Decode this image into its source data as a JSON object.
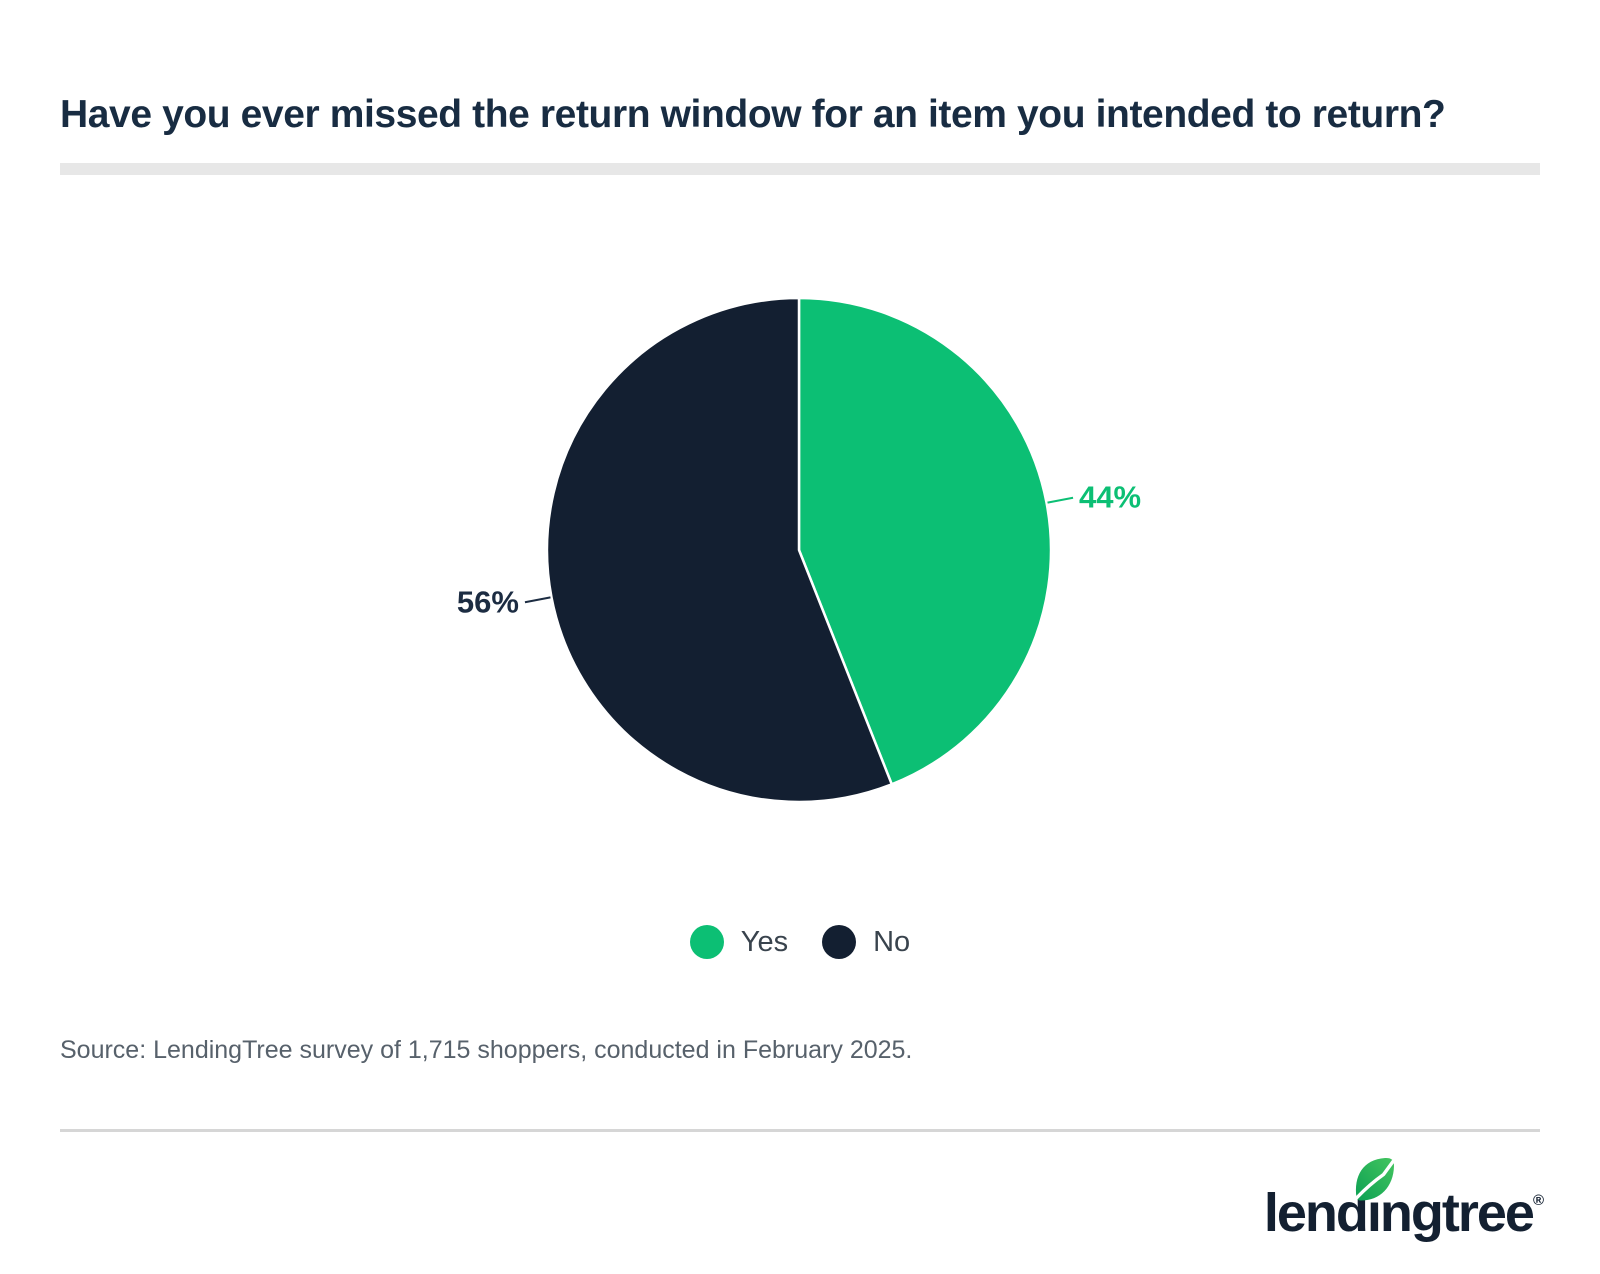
{
  "title": "Have you ever missed the return window for an item you intended to return?",
  "chart_data": {
    "type": "pie",
    "title": "Have you ever missed the return window for an item you intended to return?",
    "categories": [
      "Yes",
      "No"
    ],
    "values": [
      44,
      56
    ],
    "labels": [
      "44%",
      "56%"
    ],
    "colors": [
      "#0cbf74",
      "#131f31"
    ],
    "label_colors": [
      "#0cbf74",
      "#1c2c42"
    ],
    "legend_position": "bottom",
    "start_angle_deg": -90,
    "direction": "clockwise"
  },
  "legend": {
    "items": [
      {
        "label": "Yes",
        "color": "#0cbf74"
      },
      {
        "label": "No",
        "color": "#131f31"
      }
    ]
  },
  "source": "Source: LendingTree survey of 1,715 shoppers, conducted in February 2025.",
  "logo": {
    "text": "lendingtree",
    "registered_mark": "®"
  },
  "colors": {
    "title": "#182c42",
    "title_underline": "#e7e7e7",
    "footer_divider": "#d6d6d6",
    "legend_text": "#39434d",
    "source_text": "#57616b",
    "logo_navy": "#132031",
    "leaf_green_light": "#44c55f",
    "leaf_green_dark": "#0ca053"
  }
}
